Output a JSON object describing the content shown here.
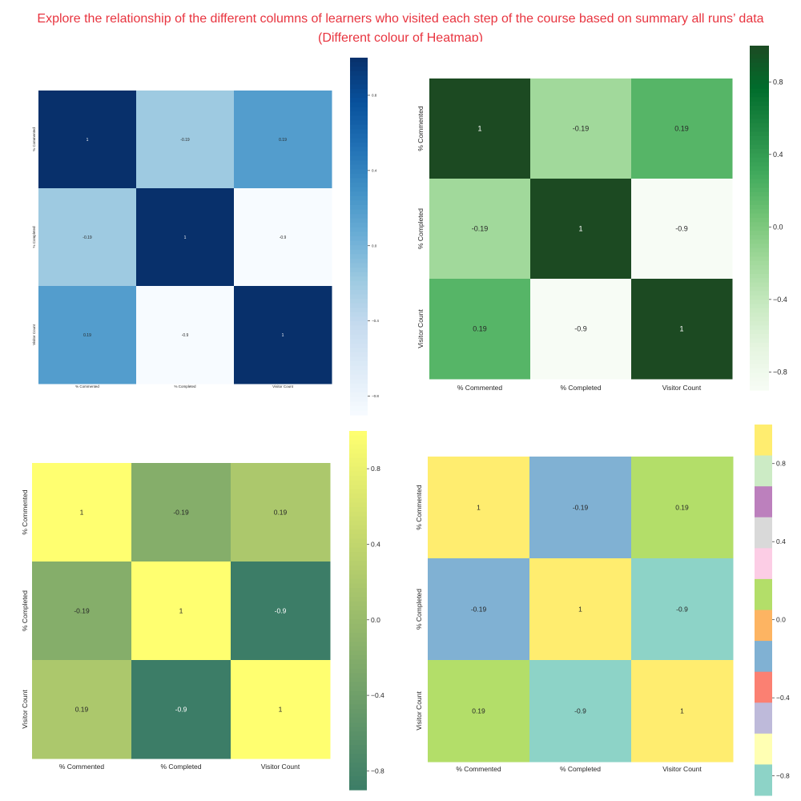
{
  "header": {
    "title_line1": "Explore the relationship of the different columns of learners who visited each step of the course based on summary all runs’ data",
    "title_line2": "(Different colour of Heatmap)"
  },
  "chart_data": [
    {
      "type": "heatmap",
      "colormap": "Blues",
      "columns": [
        "% Commented",
        "% Completed",
        "Visitor Count"
      ],
      "rows": [
        "% Commented",
        "% Completed",
        "Visitor Count"
      ],
      "values": [
        [
          1,
          -0.19,
          0.19
        ],
        [
          -0.19,
          1,
          -0.9
        ],
        [
          0.19,
          -0.9,
          1
        ]
      ],
      "annotations": [
        [
          "1",
          "-0.19",
          "0.19"
        ],
        [
          "-0.19",
          "1",
          "-0.9"
        ],
        [
          "0.19",
          "-0.9",
          "1"
        ]
      ],
      "colorbar_ticks": [
        "0.8",
        "0.4",
        "0.0",
        "−0.4",
        "−0.8"
      ],
      "colorbar_range": [
        -0.9,
        1
      ]
    },
    {
      "type": "heatmap",
      "colormap": "Greens",
      "columns": [
        "% Commented",
        "% Completed",
        "Visitor Count"
      ],
      "rows": [
        "% Commented",
        "% Completed",
        "Visitor Count"
      ],
      "values": [
        [
          1,
          -0.19,
          0.19
        ],
        [
          -0.19,
          1,
          -0.9
        ],
        [
          0.19,
          -0.9,
          1
        ]
      ],
      "annotations": [
        [
          "1",
          "-0.19",
          "0.19"
        ],
        [
          "-0.19",
          "1",
          "-0.9"
        ],
        [
          "0.19",
          "-0.9",
          "1"
        ]
      ],
      "colorbar_ticks": [
        "0.8",
        "0.4",
        "0.0",
        "−0.4",
        "−0.8"
      ],
      "colorbar_range": [
        -0.9,
        1
      ]
    },
    {
      "type": "heatmap",
      "colormap": "summer",
      "columns": [
        "% Commented",
        "% Completed",
        "Visitor Count"
      ],
      "rows": [
        "% Commented",
        "% Completed",
        "Visitor Count"
      ],
      "values": [
        [
          1,
          -0.19,
          0.19
        ],
        [
          -0.19,
          1,
          -0.9
        ],
        [
          0.19,
          -0.9,
          1
        ]
      ],
      "annotations": [
        [
          "1",
          "-0.19",
          "0.19"
        ],
        [
          "-0.19",
          "1",
          "-0.9"
        ],
        [
          "0.19",
          "-0.9",
          "1"
        ]
      ],
      "colorbar_ticks": [
        "0.8",
        "0.4",
        "0.0",
        "−0.4",
        "−0.8"
      ],
      "colorbar_range": [
        -0.9,
        1
      ]
    },
    {
      "type": "heatmap",
      "colormap": "Set3",
      "columns": [
        "% Commented",
        "% Completed",
        "Visitor Count"
      ],
      "rows": [
        "% Commented",
        "% Completed",
        "Visitor Count"
      ],
      "values": [
        [
          1,
          -0.19,
          0.19
        ],
        [
          -0.19,
          1,
          -0.9
        ],
        [
          0.19,
          -0.9,
          1
        ]
      ],
      "annotations": [
        [
          "1",
          "-0.19",
          "0.19"
        ],
        [
          "-0.19",
          "1",
          "-0.9"
        ],
        [
          "0.19",
          "-0.9",
          "1"
        ]
      ],
      "colorbar_ticks": [
        "0.8",
        "0.4",
        "0.0",
        "−0.4",
        "−0.8"
      ],
      "colorbar_range": [
        -0.9,
        1
      ],
      "colorbar_segments": [
        "#ffed6f",
        "#ccebc5",
        "#bc80bd",
        "#d9d9d9",
        "#fccde5",
        "#b3de69",
        "#fdb462",
        "#80b1d3",
        "#fb8072",
        "#bebada",
        "#ffffb3",
        "#8dd3c7"
      ]
    }
  ]
}
